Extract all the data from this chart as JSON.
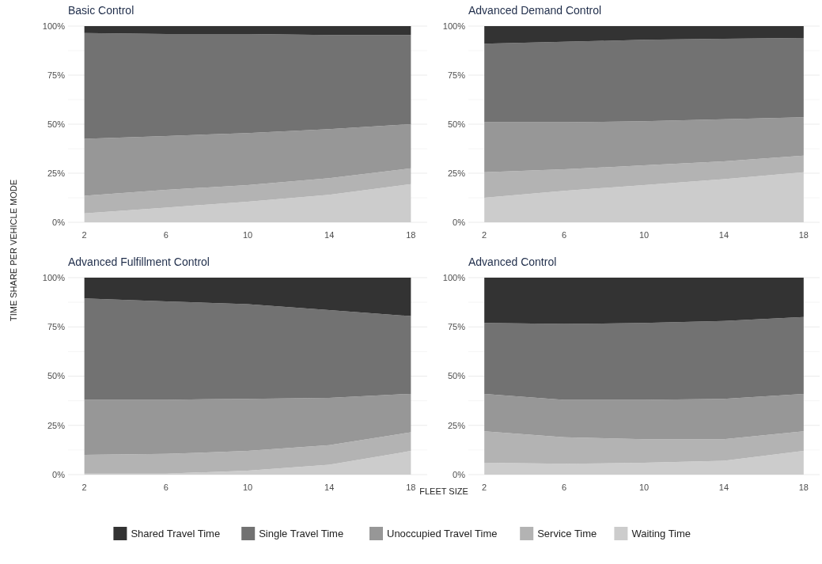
{
  "chart_data": [
    {
      "type": "area",
      "stacked": true,
      "title": "Basic Control",
      "xlabel": "FLEET SIZE",
      "ylabel": "TIME SHARE PER VEHICLE MODE",
      "x": [
        2,
        6,
        10,
        14,
        18
      ],
      "xlim": [
        1.2,
        18.8
      ],
      "xticks": [
        2,
        6,
        10,
        14,
        18
      ],
      "ylim": [
        0,
        100
      ],
      "yticks": [
        {
          "value": 0,
          "label": "0%"
        },
        {
          "value": 25,
          "label": "25%"
        },
        {
          "value": 50,
          "label": "50%"
        },
        {
          "value": 75,
          "label": "75%"
        },
        {
          "value": 100,
          "label": "100%"
        }
      ],
      "grid": "y",
      "legend": "bottom",
      "series": [
        {
          "name": "Waiting Time",
          "color": "#cccccc",
          "values": [
            4.5,
            7.5,
            10.5,
            14,
            19.5
          ]
        },
        {
          "name": "Service Time",
          "color": "#b3b3b3",
          "values": [
            9,
            9,
            8.5,
            8.5,
            8
          ]
        },
        {
          "name": "Unoccupied Travel Time",
          "color": "#979797",
          "values": [
            29,
            27.5,
            26.5,
            25,
            22.5
          ]
        },
        {
          "name": "Single Travel Time",
          "color": "#727272",
          "values": [
            54,
            52,
            50.5,
            48,
            45.5
          ]
        },
        {
          "name": "Shared Travel Time",
          "color": "#333333",
          "values": [
            3.5,
            4,
            4,
            4.5,
            4.5
          ]
        }
      ]
    },
    {
      "type": "area",
      "stacked": true,
      "title": "Advanced Demand Control",
      "x": [
        2,
        6,
        10,
        14,
        18
      ],
      "xlim": [
        1.2,
        18.8
      ],
      "xticks": [
        2,
        6,
        10,
        14,
        18
      ],
      "ylim": [
        0,
        100
      ],
      "yticks": [
        {
          "value": 0,
          "label": "0%"
        },
        {
          "value": 25,
          "label": "25%"
        },
        {
          "value": 50,
          "label": "50%"
        },
        {
          "value": 75,
          "label": "75%"
        },
        {
          "value": 100,
          "label": "100%"
        }
      ],
      "grid": "y",
      "series": [
        {
          "color": "#cccccc",
          "values": [
            12.5,
            16,
            19,
            22,
            25.5
          ]
        },
        {
          "color": "#b3b3b3",
          "values": [
            13,
            11,
            10,
            9,
            8.5
          ]
        },
        {
          "color": "#979797",
          "values": [
            25.5,
            24,
            22.5,
            21.5,
            19.5
          ]
        },
        {
          "color": "#727272",
          "values": [
            40,
            41,
            41.5,
            41,
            40.5
          ]
        },
        {
          "color": "#333333",
          "values": [
            9,
            8,
            7,
            6.5,
            6
          ]
        }
      ]
    },
    {
      "type": "area",
      "stacked": true,
      "title": "Advanced Fulfillment Control",
      "x": [
        2,
        6,
        10,
        14,
        18
      ],
      "xlim": [
        1.2,
        18.8
      ],
      "xticks": [
        2,
        6,
        10,
        14,
        18
      ],
      "ylim": [
        0,
        100
      ],
      "yticks": [
        {
          "value": 0,
          "label": "0%"
        },
        {
          "value": 25,
          "label": "25%"
        },
        {
          "value": 50,
          "label": "50%"
        },
        {
          "value": 75,
          "label": "75%"
        },
        {
          "value": 100,
          "label": "100%"
        }
      ],
      "grid": "y",
      "series": [
        {
          "color": "#cccccc",
          "values": [
            0.5,
            0.5,
            2,
            5,
            12
          ]
        },
        {
          "color": "#b3b3b3",
          "values": [
            9.5,
            10,
            10,
            10,
            9.5
          ]
        },
        {
          "color": "#979797",
          "values": [
            28,
            27.5,
            26.5,
            24,
            19.5
          ]
        },
        {
          "color": "#727272",
          "values": [
            51.5,
            50,
            48,
            44.5,
            39.5
          ]
        },
        {
          "color": "#333333",
          "values": [
            10.5,
            12,
            13.5,
            16.5,
            19.5
          ]
        }
      ]
    },
    {
      "type": "area",
      "stacked": true,
      "title": "Advanced Control",
      "x": [
        2,
        6,
        10,
        14,
        18
      ],
      "xlim": [
        1.2,
        18.8
      ],
      "xticks": [
        2,
        6,
        10,
        14,
        18
      ],
      "ylim": [
        0,
        100
      ],
      "yticks": [
        {
          "value": 0,
          "label": "0%"
        },
        {
          "value": 25,
          "label": "25%"
        },
        {
          "value": 50,
          "label": "50%"
        },
        {
          "value": 75,
          "label": "75%"
        },
        {
          "value": 100,
          "label": "100%"
        }
      ],
      "grid": "y",
      "series": [
        {
          "color": "#cccccc",
          "values": [
            6,
            5.5,
            6,
            7,
            12
          ]
        },
        {
          "color": "#b3b3b3",
          "values": [
            16,
            13.5,
            12,
            11,
            10
          ]
        },
        {
          "color": "#979797",
          "values": [
            19,
            19,
            20,
            20.5,
            19
          ]
        },
        {
          "color": "#727272",
          "values": [
            36,
            38.5,
            39,
            39.5,
            39
          ]
        },
        {
          "color": "#333333",
          "values": [
            23,
            23.5,
            23,
            22,
            20
          ]
        }
      ]
    }
  ]
}
